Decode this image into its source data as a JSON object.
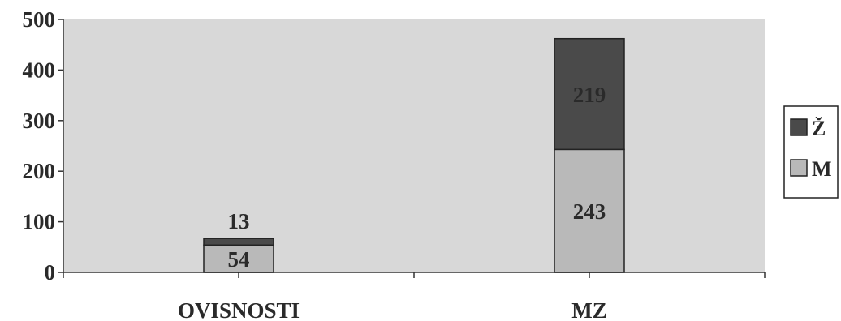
{
  "chart_data": {
    "type": "bar",
    "stacked": true,
    "categories": [
      "OVISNOSTI",
      "MZ"
    ],
    "series": [
      {
        "name": "M",
        "values": [
          54,
          243
        ],
        "color": "#b9b9b9"
      },
      {
        "name": "Ž",
        "values": [
          13,
          219
        ],
        "color": "#4a4a4a"
      }
    ],
    "data_labels": [
      {
        "series": "M",
        "category": "OVISNOSTI",
        "text": "54"
      },
      {
        "series": "Ž",
        "category": "OVISNOSTI",
        "text": "13"
      },
      {
        "series": "M",
        "category": "MZ",
        "text": "243"
      },
      {
        "series": "Ž",
        "category": "MZ",
        "text": "219"
      }
    ],
    "y_ticks": [
      "0",
      "100",
      "200",
      "300",
      "400",
      "500"
    ],
    "ylim": [
      0,
      500
    ],
    "title": "",
    "xlabel": "",
    "ylabel": "",
    "grid": false,
    "legend": "right",
    "plot_background": "#d8d8d8"
  }
}
